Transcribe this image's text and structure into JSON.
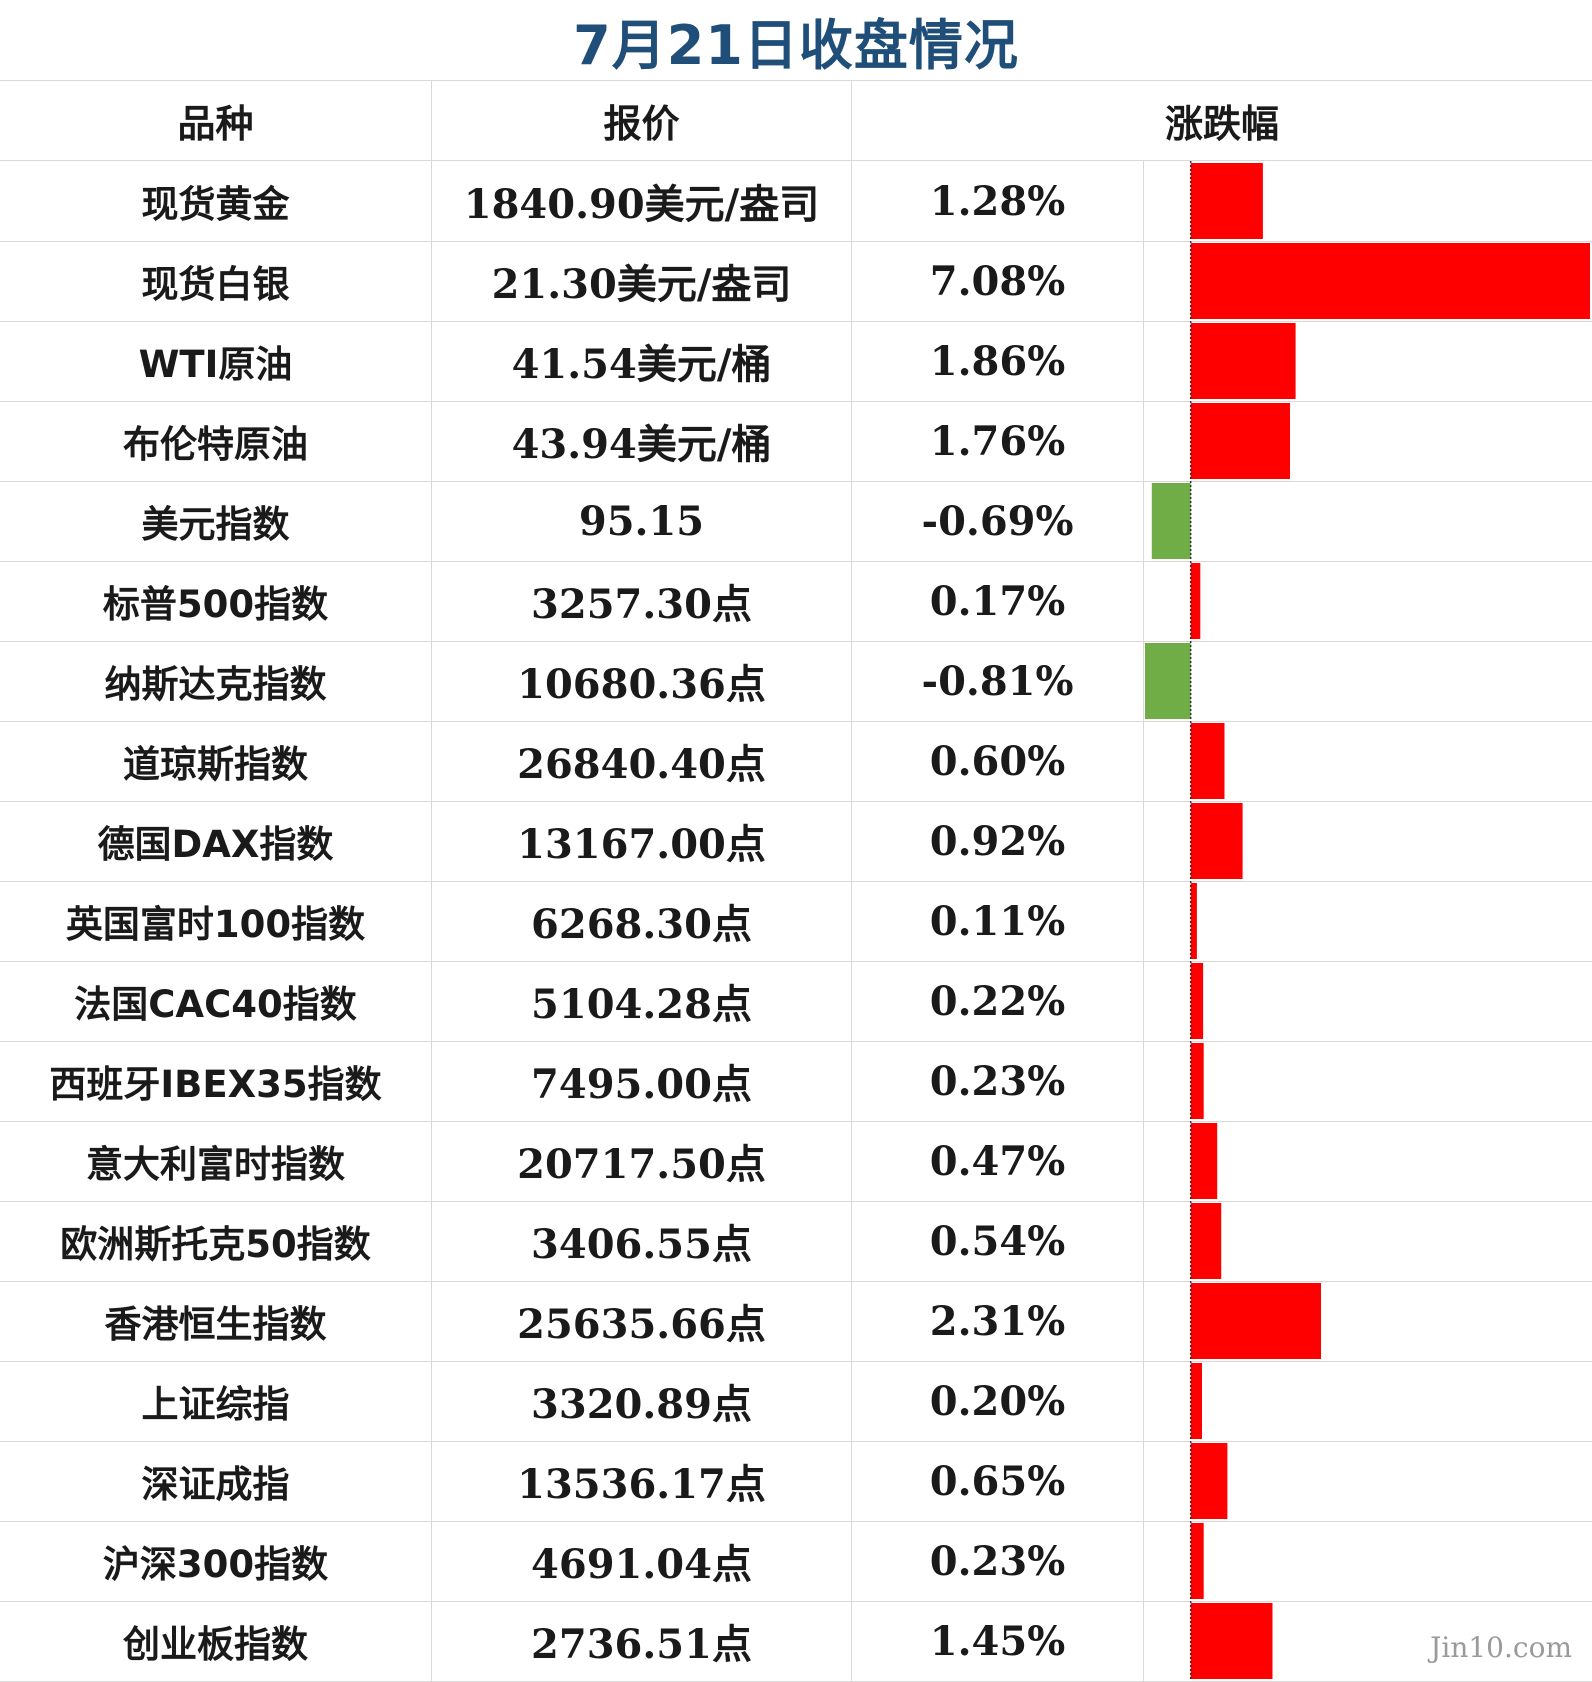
{
  "title": "7月21日收盘情况",
  "headers": {
    "name": "品种",
    "price": "报价",
    "change": "涨跌幅"
  },
  "watermark": "Jin10.com",
  "colors": {
    "up": "#ff0000",
    "down": "#70ad47",
    "title": "#1f4e79"
  },
  "chart_data": {
    "type": "bar",
    "title": "7月21日收盘情况",
    "orientation": "horizontal",
    "categories": [
      "现货黄金",
      "现货白银",
      "WTI原油",
      "布伦特原油",
      "美元指数",
      "标普500指数",
      "纳斯达克指数",
      "道琼斯指数",
      "德国DAX指数",
      "英国富时100指数",
      "法国CAC40指数",
      "西班牙IBEX35指数",
      "意大利富时指数",
      "欧洲斯托克50指数",
      "香港恒生指数",
      "上证综指",
      "深证成指",
      "沪深300指数",
      "创业板指数"
    ],
    "values": [
      1.28,
      7.08,
      1.86,
      1.76,
      -0.69,
      0.17,
      -0.81,
      0.6,
      0.92,
      0.11,
      0.22,
      0.23,
      0.47,
      0.54,
      2.31,
      0.2,
      0.65,
      0.23,
      1.45
    ],
    "xlim": [
      -0.81,
      7.08
    ],
    "rows": [
      {
        "name": "现货黄金",
        "price": "1840.90美元/盎司",
        "pct": "1.28%"
      },
      {
        "name": "现货白银",
        "price": "21.30美元/盎司",
        "pct": "7.08%"
      },
      {
        "name": "WTI原油",
        "price": "41.54美元/桶",
        "pct": "1.86%"
      },
      {
        "name": "布伦特原油",
        "price": "43.94美元/桶",
        "pct": "1.76%"
      },
      {
        "name": "美元指数",
        "price": "95.15",
        "pct": "-0.69%"
      },
      {
        "name": "标普500指数",
        "price": "3257.30点",
        "pct": "0.17%"
      },
      {
        "name": "纳斯达克指数",
        "price": "10680.36点",
        "pct": "-0.81%"
      },
      {
        "name": "道琼斯指数",
        "price": "26840.40点",
        "pct": "0.60%"
      },
      {
        "name": "德国DAX指数",
        "price": "13167.00点",
        "pct": "0.92%"
      },
      {
        "name": "英国富时100指数",
        "price": "6268.30点",
        "pct": "0.11%"
      },
      {
        "name": "法国CAC40指数",
        "price": "5104.28点",
        "pct": "0.22%"
      },
      {
        "name": "西班牙IBEX35指数",
        "price": "7495.00点",
        "pct": "0.23%"
      },
      {
        "name": "意大利富时指数",
        "price": "20717.50点",
        "pct": "0.47%"
      },
      {
        "name": "欧洲斯托克50指数",
        "price": "3406.55点",
        "pct": "0.54%"
      },
      {
        "name": "香港恒生指数",
        "price": "25635.66点",
        "pct": "2.31%"
      },
      {
        "name": "上证综指",
        "price": "3320.89点",
        "pct": "0.20%"
      },
      {
        "name": "深证成指",
        "price": "13536.17点",
        "pct": "0.65%"
      },
      {
        "name": "沪深300指数",
        "price": "4691.04点",
        "pct": "0.23%"
      },
      {
        "name": "创业板指数",
        "price": "2736.51点",
        "pct": "1.45%"
      }
    ]
  }
}
